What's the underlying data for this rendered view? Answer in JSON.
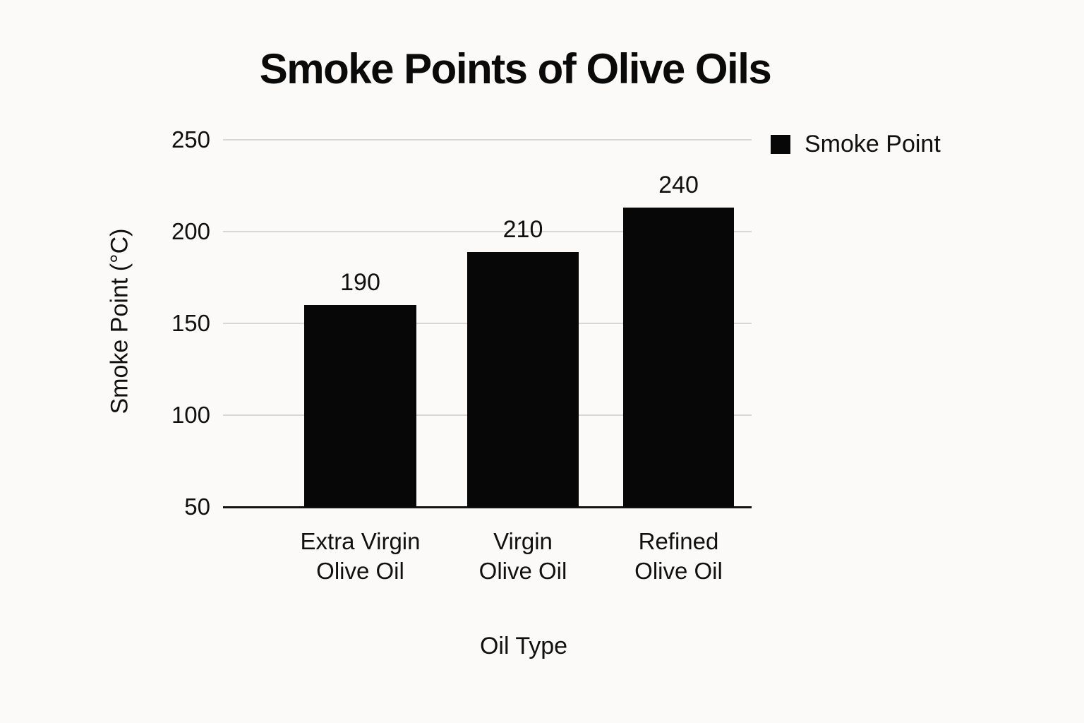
{
  "chart_data": {
    "type": "bar",
    "title": "Smoke Points of Olive Oils",
    "xlabel": "Oil Type",
    "ylabel": "Smoke Point (°C)",
    "categories": [
      "Extra Virgin Olive Oil",
      "Virgin Olive Oil",
      "Refined Olive Oil"
    ],
    "series": [
      {
        "name": "Smoke Point",
        "values": [
          190,
          210,
          240
        ]
      }
    ],
    "ylim": [
      50,
      250
    ],
    "yticks": [
      50,
      100,
      150,
      200,
      250
    ],
    "grid": "horizontal",
    "legend_position": "top-right",
    "colors": {
      "bar": "#070707",
      "background": "#fbfaf8",
      "gridline": "#d8d7d3",
      "axis_line": "#121212",
      "text": "#101010"
    },
    "layout_hints": {
      "rendered_bar_top_axis_values": [
        160,
        189,
        213
      ],
      "note": "in source image the bars are drawn shorter than their labeled values"
    }
  }
}
